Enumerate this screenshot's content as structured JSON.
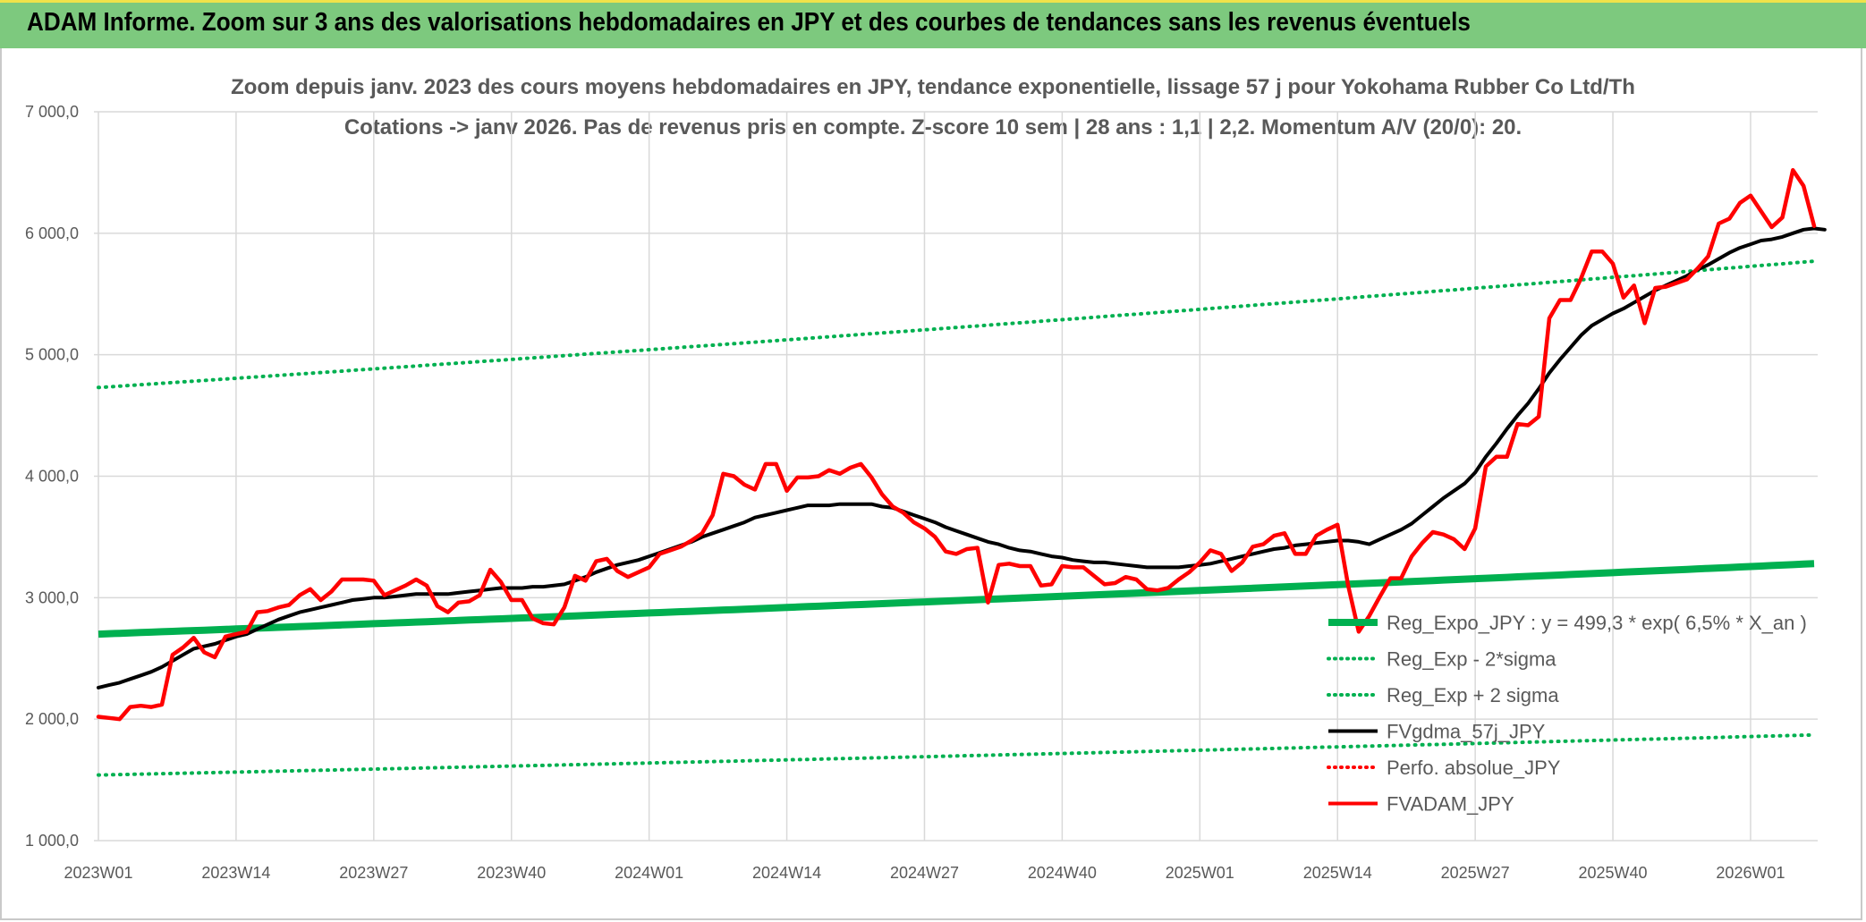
{
  "header": {
    "banner": "ADAM Informe. Zoom sur 3 ans des valorisations hebdomadaires en JPY et des courbes de tendances sans les revenus éventuels"
  },
  "chart_data": {
    "type": "line",
    "title": "Zoom depuis janv. 2023 des cours moyens hebdomadaires en JPY, tendance exponentielle, lissage 57 j pour Yokohama Rubber Co Ltd/Th",
    "subtitle": "Cotations -> janv 2026. Pas de revenus pris en compte. Z-score 10 sem | 28 ans : 1,1 | 2,2. Momentum A/V (20/0): 20.",
    "x_tick_labels": [
      "2023W01",
      "2023W14",
      "2023W27",
      "2023W40",
      "2024W01",
      "2024W14",
      "2024W27",
      "2024W40",
      "2025W01",
      "2025W14",
      "2025W27",
      "2025W40",
      "2026W01"
    ],
    "y_tick_labels": [
      "1 000,0",
      "2 000,0",
      "3 000,0",
      "4 000,0",
      "5 000,0",
      "6 000,0",
      "7 000,0"
    ],
    "ylim": [
      1000,
      7000
    ],
    "grid": true,
    "legend_position": "bottom-right",
    "colors": {
      "green": "#00b050",
      "black": "#000000",
      "red": "#ff0000",
      "grid": "#d9d9d9"
    },
    "legend": [
      {
        "label": "Reg_Expo_JPY : y = 499,3 * exp( 6,5% *  X_an )",
        "color": "#00b050",
        "style": "thick"
      },
      {
        "label": "Reg_Exp - 2*sigma",
        "color": "#00b050",
        "style": "dotted"
      },
      {
        "label": "Reg_Exp + 2 sigma",
        "color": "#00b050",
        "style": "dotted"
      },
      {
        "label": "FVgdma_57j_JPY",
        "color": "#000000",
        "style": "solid"
      },
      {
        "label": "Perfo. absolue_JPY",
        "color": "#ff0000",
        "style": "dotted"
      },
      {
        "label": "FVADAM_JPY",
        "color": "#ff0000",
        "style": "solid"
      }
    ],
    "trend_lines": {
      "Reg_Expo_JPY": {
        "start": 2700,
        "end": 3280
      },
      "Reg_Exp - 2*sigma": {
        "start": 1540,
        "end": 1870
      },
      "Reg_Exp + 2 sigma": {
        "start": 4730,
        "end": 5770
      }
    },
    "series": [
      {
        "name": "FVADAM_JPY",
        "values": [
          2020,
          2010,
          2000,
          2100,
          2110,
          2100,
          2120,
          2530,
          2590,
          2670,
          2550,
          2510,
          2680,
          2700,
          2720,
          2880,
          2890,
          2920,
          2940,
          3020,
          3070,
          2980,
          3050,
          3150,
          3150,
          3150,
          3140,
          3020,
          3060,
          3100,
          3150,
          3100,
          2930,
          2880,
          2960,
          2970,
          3020,
          3230,
          3130,
          2980,
          2980,
          2830,
          2790,
          2780,
          2920,
          3180,
          3140,
          3300,
          3320,
          3220,
          3170,
          3210,
          3250,
          3360,
          3390,
          3420,
          3470,
          3530,
          3680,
          4020,
          4000,
          3930,
          3890,
          4100,
          4100,
          3880,
          3990,
          3990,
          4000,
          4050,
          4020,
          4070,
          4100,
          3990,
          3850,
          3750,
          3700,
          3620,
          3570,
          3500,
          3380,
          3360,
          3400,
          3410,
          2960,
          3270,
          3280,
          3260,
          3260,
          3100,
          3110,
          3260,
          3250,
          3250,
          3180,
          3110,
          3120,
          3170,
          3150,
          3070,
          3060,
          3080,
          3150,
          3210,
          3290,
          3390,
          3360,
          3220,
          3290,
          3420,
          3440,
          3510,
          3530,
          3360,
          3360,
          3510,
          3560,
          3600,
          3100,
          2720,
          2850,
          3010,
          3160,
          3160,
          3340,
          3450,
          3540,
          3520,
          3480,
          3400,
          3570,
          4080,
          4160,
          4160,
          4430,
          4420,
          4490,
          5300,
          5450,
          5450,
          5630,
          5850,
          5850,
          5750,
          5470,
          5570,
          5260,
          5550,
          5560,
          5590,
          5620,
          5710,
          5810,
          6080,
          6120,
          6250,
          6310,
          6180,
          6050,
          6130,
          6520,
          6390,
          6060
        ]
      },
      {
        "name": "FVgdma_57j_JPY",
        "values": [
          2260,
          2280,
          2300,
          2330,
          2360,
          2390,
          2430,
          2480,
          2530,
          2580,
          2600,
          2620,
          2650,
          2680,
          2700,
          2740,
          2780,
          2820,
          2850,
          2880,
          2900,
          2920,
          2940,
          2960,
          2980,
          2990,
          3000,
          3000,
          3010,
          3020,
          3030,
          3030,
          3030,
          3030,
          3040,
          3050,
          3060,
          3070,
          3080,
          3080,
          3080,
          3090,
          3090,
          3100,
          3110,
          3140,
          3170,
          3210,
          3240,
          3270,
          3290,
          3310,
          3340,
          3370,
          3400,
          3430,
          3460,
          3500,
          3530,
          3560,
          3590,
          3620,
          3660,
          3680,
          3700,
          3720,
          3740,
          3760,
          3760,
          3760,
          3770,
          3770,
          3770,
          3770,
          3750,
          3740,
          3710,
          3680,
          3650,
          3620,
          3580,
          3550,
          3520,
          3490,
          3460,
          3440,
          3410,
          3390,
          3380,
          3360,
          3340,
          3330,
          3310,
          3300,
          3290,
          3290,
          3280,
          3270,
          3260,
          3250,
          3250,
          3250,
          3250,
          3260,
          3270,
          3280,
          3300,
          3320,
          3340,
          3360,
          3380,
          3400,
          3410,
          3430,
          3440,
          3450,
          3460,
          3470,
          3470,
          3460,
          3440,
          3480,
          3520,
          3560,
          3610,
          3680,
          3750,
          3820,
          3880,
          3940,
          4030,
          4160,
          4270,
          4390,
          4500,
          4600,
          4720,
          4850,
          4960,
          5060,
          5160,
          5240,
          5290,
          5340,
          5380,
          5430,
          5480,
          5530,
          5570,
          5610,
          5650,
          5700,
          5740,
          5790,
          5840,
          5880,
          5910,
          5940,
          5950,
          5970,
          6000,
          6030,
          6040,
          6030
        ]
      }
    ]
  }
}
